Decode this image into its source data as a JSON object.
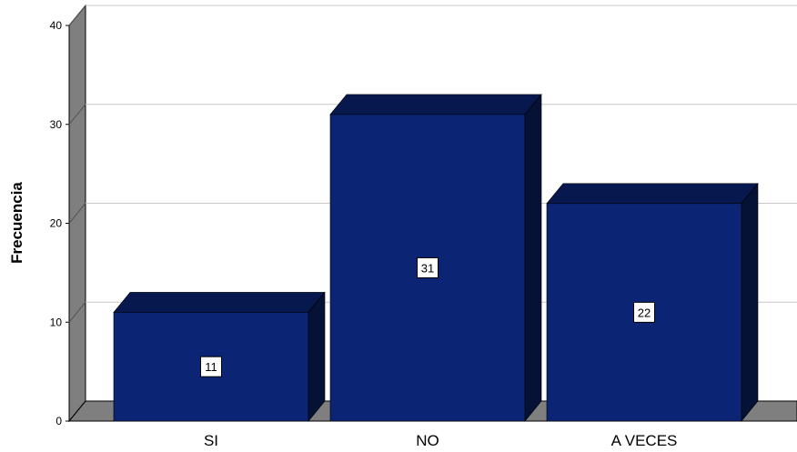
{
  "chart_data": {
    "type": "bar",
    "categories": [
      "SI",
      "NO",
      "A VECES"
    ],
    "values": [
      11,
      31,
      22
    ],
    "data_labels": [
      "11",
      "31",
      "22"
    ],
    "ylabel": "Frecuencia",
    "xlabel": "",
    "ylim": [
      0,
      40
    ],
    "yticks": [
      "0",
      "10",
      "20",
      "30",
      "40"
    ],
    "grid": true,
    "style": "3d",
    "colors": {
      "bar_front": "#0b2473",
      "bar_top": "#07184e",
      "bar_side": "#051236",
      "wall": "#7f7f7f",
      "floor": "#7f7f7f",
      "grid": "#c8c8c8"
    }
  }
}
